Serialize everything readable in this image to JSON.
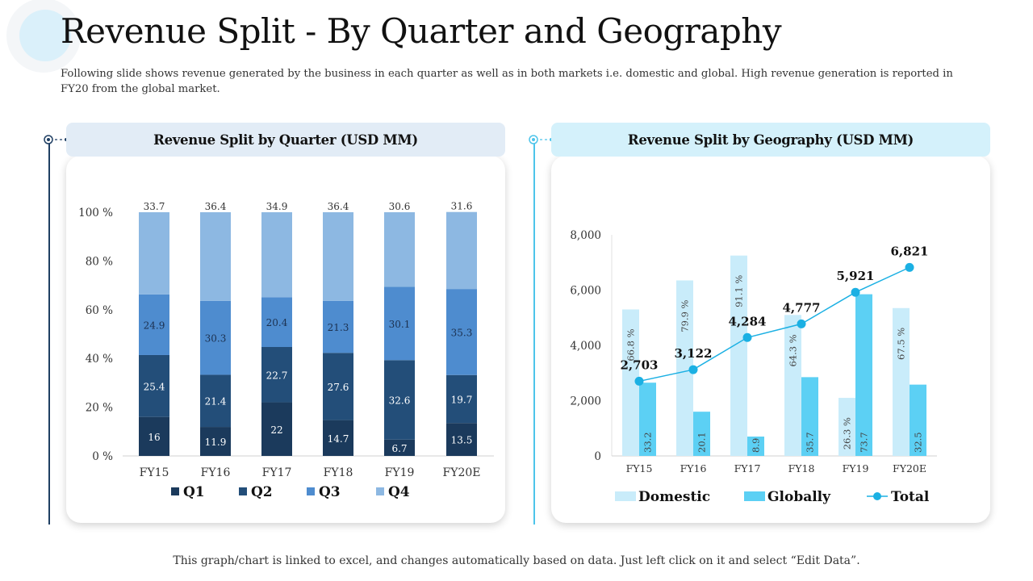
{
  "title": "Revenue Split - By Quarter and Geography",
  "subtitle": "Following slide shows revenue generated by the business in each quarter as well as in both markets i.e. domestic and global. High revenue generation is reported in FY20 from the global market.",
  "footer": "This graph/chart is linked to excel, and changes automatically based on data. Just left click on it and select “Edit Data”.",
  "colors": {
    "q1": "#1b3a5c",
    "q2": "#234e79",
    "q3": "#4e8ccf",
    "q4": "#8db8e2",
    "domestic": "#c9ecfa",
    "globally": "#5cd0f4",
    "total": "#1bb0e3",
    "left_header_bg": "#e2ecf6",
    "right_header_bg": "#d4f1fb",
    "left_accent": "#1f3f63",
    "right_accent": "#4dc4ea"
  },
  "chart_data": [
    {
      "type": "bar",
      "stacked": true,
      "title": "Revenue Split by Quarter (USD MM)",
      "categories": [
        "FY15",
        "FY16",
        "FY17",
        "FY18",
        "FY19",
        "FY20E"
      ],
      "series": [
        {
          "name": "Q1",
          "values": [
            16,
            11.9,
            22,
            14.7,
            6.7,
            13.5
          ]
        },
        {
          "name": "Q2",
          "values": [
            25.4,
            21.4,
            22.7,
            27.6,
            32.6,
            19.7
          ]
        },
        {
          "name": "Q3",
          "values": [
            24.9,
            30.3,
            20.4,
            21.3,
            30.1,
            35.3
          ]
        },
        {
          "name": "Q4",
          "values": [
            33.7,
            36.4,
            34.9,
            36.4,
            30.6,
            31.6
          ]
        }
      ],
      "yticks": [
        "0 %",
        "20 %",
        "40 %",
        "60 %",
        "80 %",
        "100 %"
      ],
      "ylim": [
        0,
        100
      ],
      "legend": "bottom"
    },
    {
      "type": "bar",
      "title": "Revenue Split by Geography (USD MM)",
      "categories": [
        "FY15",
        "FY16",
        "FY17",
        "FY18",
        "FY19",
        "FY20E"
      ],
      "series": [
        {
          "name": "Domestic",
          "kind": "bar",
          "values": [
            5300,
            6350,
            7250,
            5100,
            2100,
            5350
          ],
          "labels": [
            "66.8 %",
            "79.9 %",
            "91.1 %",
            "64.3 %",
            "26.3 %",
            "67.5 %"
          ]
        },
        {
          "name": "Globally",
          "kind": "bar",
          "values": [
            2650,
            1600,
            700,
            2850,
            5850,
            2580
          ],
          "labels": [
            "33.2",
            "20.1",
            "8.9",
            "35.7",
            "73.7",
            "32.5"
          ]
        },
        {
          "name": "Total",
          "kind": "line",
          "values": [
            2703,
            3122,
            4284,
            4777,
            5921,
            6821
          ],
          "labels": [
            "2,703",
            "3,122",
            "4,284",
            "4,777",
            "5,921",
            "6,821"
          ]
        }
      ],
      "yticks": [
        "0",
        "2,000",
        "4,000",
        "6,000",
        "8,000"
      ],
      "ylim": [
        0,
        8000
      ],
      "legend": "bottom"
    }
  ]
}
